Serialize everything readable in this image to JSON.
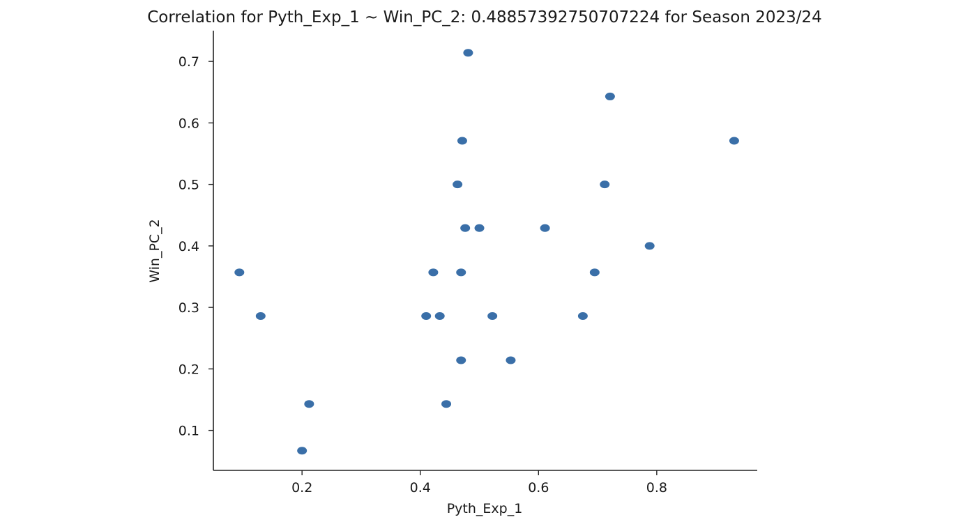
{
  "chart_data": {
    "type": "scatter",
    "title": "Correlation for Pyth_Exp_1 ~ Win_PC_2: 0.48857392750707224 for Season 2023/24",
    "xlabel": "Pyth_Exp_1",
    "ylabel": "Win_PC_2",
    "xlim": [
      0.05,
      0.97
    ],
    "ylim": [
      0.035,
      0.75
    ],
    "xticks": [
      0.2,
      0.4,
      0.6,
      0.8
    ],
    "xtick_labels": [
      "0.2",
      "0.4",
      "0.6",
      "0.8"
    ],
    "yticks": [
      0.1,
      0.2,
      0.3,
      0.4,
      0.5,
      0.6,
      0.7
    ],
    "ytick_labels": [
      "0.1",
      "0.2",
      "0.3",
      "0.4",
      "0.5",
      "0.6",
      "0.7"
    ],
    "grid": false,
    "marker_color": "#3a6fa8",
    "points": [
      {
        "x": 0.094,
        "y": 0.357
      },
      {
        "x": 0.13,
        "y": 0.286
      },
      {
        "x": 0.2,
        "y": 0.067
      },
      {
        "x": 0.212,
        "y": 0.143
      },
      {
        "x": 0.41,
        "y": 0.286
      },
      {
        "x": 0.422,
        "y": 0.357
      },
      {
        "x": 0.433,
        "y": 0.286
      },
      {
        "x": 0.444,
        "y": 0.143
      },
      {
        "x": 0.463,
        "y": 0.5
      },
      {
        "x": 0.469,
        "y": 0.214
      },
      {
        "x": 0.469,
        "y": 0.357
      },
      {
        "x": 0.471,
        "y": 0.571
      },
      {
        "x": 0.476,
        "y": 0.429
      },
      {
        "x": 0.481,
        "y": 0.714
      },
      {
        "x": 0.5,
        "y": 0.429
      },
      {
        "x": 0.522,
        "y": 0.286
      },
      {
        "x": 0.553,
        "y": 0.214
      },
      {
        "x": 0.611,
        "y": 0.429
      },
      {
        "x": 0.675,
        "y": 0.286
      },
      {
        "x": 0.695,
        "y": 0.357
      },
      {
        "x": 0.712,
        "y": 0.5
      },
      {
        "x": 0.721,
        "y": 0.643
      },
      {
        "x": 0.788,
        "y": 0.4
      },
      {
        "x": 0.931,
        "y": 0.571
      }
    ]
  }
}
